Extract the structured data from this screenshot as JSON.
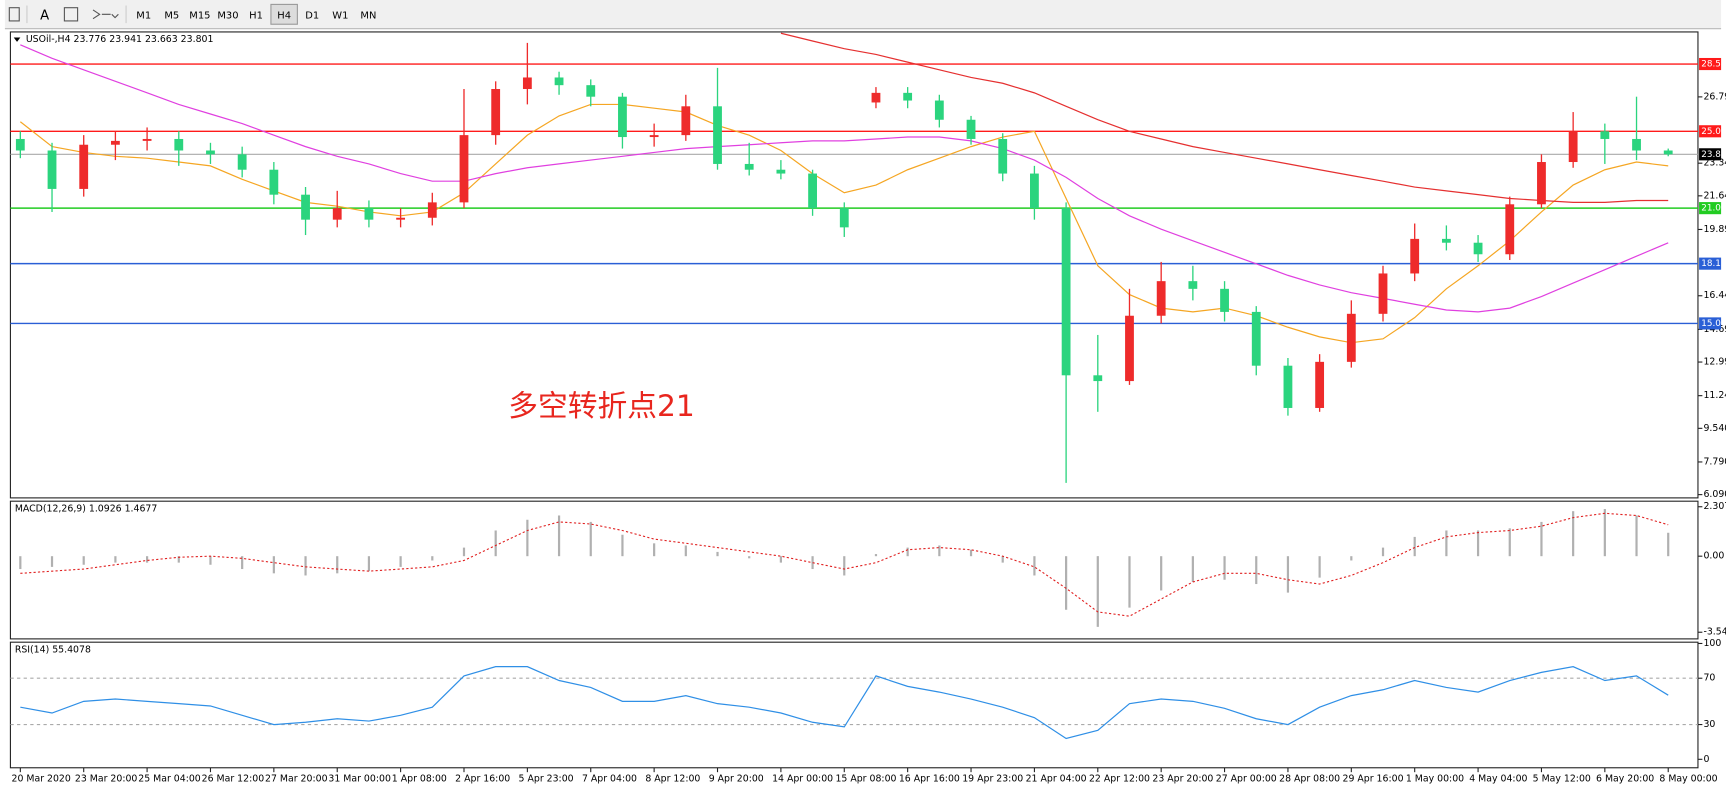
{
  "toolbar": {
    "font_button": "A",
    "timeframes": [
      "M1",
      "M5",
      "M15",
      "M30",
      "H1",
      "H4",
      "D1",
      "W1",
      "MN"
    ],
    "active_index": 5
  },
  "chart_data": [
    {
      "type": "candlestick",
      "title": "USOil-,H4 23.776 23.941 23.663 23.801",
      "annotation": "多空转折点21",
      "up_color": "#ee2b2b",
      "down_color": "#2bd47e",
      "open": [
        24.6,
        24.0,
        22.0,
        24.3,
        24.5,
        24.6,
        24.0,
        23.8,
        23.0,
        21.7,
        20.4,
        21.0,
        20.4,
        20.5,
        21.3,
        24.8,
        27.2,
        27.8,
        27.4,
        26.8,
        24.7,
        24.8,
        26.3,
        23.3,
        23.0,
        22.8,
        21.0,
        26.5,
        27.0,
        26.6,
        25.6,
        24.6,
        22.8,
        21.0,
        12.3,
        12.0,
        15.4,
        17.2,
        16.8,
        15.6,
        12.8,
        10.6,
        13.0,
        15.5,
        17.6,
        19.4,
        19.2,
        18.6,
        21.2,
        23.4,
        25.0,
        24.6,
        24.0
      ],
      "high": [
        25.0,
        24.4,
        24.8,
        25.0,
        25.2,
        25.0,
        24.4,
        24.2,
        23.4,
        22.1,
        21.9,
        21.4,
        21.0,
        21.8,
        27.2,
        27.6,
        29.6,
        28.1,
        27.7,
        27.0,
        25.4,
        26.9,
        28.3,
        24.4,
        23.5,
        23.0,
        21.3,
        27.3,
        27.3,
        26.9,
        25.8,
        24.9,
        23.2,
        21.3,
        14.4,
        16.8,
        18.2,
        18.0,
        17.2,
        15.9,
        13.2,
        13.4,
        16.2,
        18.0,
        20.2,
        20.1,
        19.6,
        21.6,
        23.8,
        26.0,
        25.4,
        26.8,
        24.1
      ],
      "low": [
        23.6,
        20.8,
        21.6,
        23.5,
        24.0,
        23.2,
        23.3,
        22.6,
        21.2,
        19.6,
        20.0,
        20.0,
        20.0,
        20.1,
        21.0,
        24.3,
        26.4,
        26.9,
        26.3,
        24.1,
        24.2,
        24.5,
        23.0,
        22.7,
        22.5,
        20.6,
        19.5,
        26.2,
        26.2,
        25.2,
        24.3,
        22.4,
        20.4,
        6.7,
        10.4,
        11.8,
        15.0,
        16.2,
        15.1,
        12.3,
        10.2,
        10.4,
        12.7,
        15.1,
        17.2,
        18.8,
        18.2,
        18.3,
        21.0,
        23.1,
        23.3,
        23.5,
        23.7
      ],
      "close": [
        24.0,
        22.0,
        24.3,
        24.5,
        24.6,
        24.0,
        23.8,
        23.0,
        21.7,
        20.4,
        21.0,
        20.4,
        20.5,
        21.3,
        24.8,
        27.2,
        27.8,
        27.4,
        26.8,
        24.7,
        24.8,
        26.3,
        23.3,
        23.0,
        22.8,
        21.0,
        20.0,
        27.0,
        26.6,
        25.6,
        24.6,
        22.8,
        21.0,
        12.3,
        12.0,
        15.4,
        17.2,
        16.8,
        15.6,
        12.8,
        10.6,
        13.0,
        15.5,
        17.6,
        19.4,
        19.2,
        18.6,
        21.2,
        23.4,
        25.0,
        24.6,
        24.0,
        23.8
      ],
      "series": [
        {
          "color": "#f5a623",
          "values": [
            25.5,
            24.2,
            23.9,
            23.7,
            23.6,
            23.4,
            23.2,
            22.5,
            21.9,
            21.3,
            21.1,
            20.8,
            20.6,
            20.8,
            21.8,
            23.3,
            24.8,
            25.8,
            26.4,
            26.4,
            26.2,
            26.0,
            25.3,
            24.8,
            24.0,
            22.8,
            21.8,
            22.2,
            23.0,
            23.6,
            24.2,
            24.7,
            25.0,
            21.5,
            18.0,
            16.5,
            15.8,
            15.6,
            15.8,
            15.4,
            14.8,
            14.3,
            14.0,
            14.2,
            15.3,
            16.8,
            18.0,
            19.3,
            20.8,
            22.2,
            23.0,
            23.4,
            23.2
          ]
        },
        {
          "color": "#e040e0",
          "values": [
            29.5,
            28.8,
            28.2,
            27.6,
            27.0,
            26.4,
            25.9,
            25.4,
            24.8,
            24.2,
            23.7,
            23.3,
            22.8,
            22.4,
            22.4,
            22.8,
            23.1,
            23.3,
            23.5,
            23.7,
            23.9,
            24.1,
            24.2,
            24.3,
            24.4,
            24.5,
            24.5,
            24.6,
            24.7,
            24.7,
            24.5,
            24.1,
            23.5,
            22.6,
            21.5,
            20.6,
            19.9,
            19.3,
            18.7,
            18.1,
            17.5,
            17.0,
            16.6,
            16.3,
            16.0,
            15.7,
            15.6,
            15.8,
            16.4,
            17.1,
            17.8,
            18.5,
            19.2
          ]
        },
        {
          "color": "#e53030",
          "values": [
            null,
            null,
            null,
            null,
            null,
            null,
            null,
            null,
            null,
            null,
            null,
            null,
            null,
            null,
            null,
            null,
            null,
            null,
            null,
            null,
            null,
            null,
            null,
            null,
            30.1,
            29.7,
            29.3,
            29.0,
            28.6,
            28.2,
            27.8,
            27.5,
            27.0,
            26.3,
            25.6,
            25.0,
            24.6,
            24.2,
            23.9,
            23.6,
            23.3,
            23.0,
            22.7,
            22.4,
            22.1,
            21.9,
            21.7,
            21.5,
            21.4,
            21.3,
            21.3,
            21.4,
            21.4
          ]
        }
      ],
      "hlines": [
        {
          "value": 28.5,
          "label": "28.500",
          "color": "#ff1a1a"
        },
        {
          "value": 25,
          "label": "25.000",
          "color": "#ff1a1a"
        },
        {
          "value": 21,
          "label": "21.000",
          "color": "#22cc22"
        },
        {
          "value": 18.111,
          "label": "18.111",
          "color": "#2a5fd6"
        },
        {
          "value": 15,
          "label": "15.000",
          "color": "#2a5fd6"
        }
      ],
      "last_price": {
        "value": 23.801,
        "label": "23.801"
      },
      "ylim": [
        5.92,
        30.17
      ],
      "yticks": [
        {
          "value": 6.09,
          "label": "6.090"
        },
        {
          "value": 7.79,
          "label": "7.790"
        },
        {
          "value": 9.54,
          "label": "9.540"
        },
        {
          "value": 11.24,
          "label": "11.240"
        },
        {
          "value": 12.99,
          "label": "12.990"
        },
        {
          "value": 14.69,
          "label": "14.690"
        },
        {
          "value": 16.44,
          "label": "16.440"
        },
        {
          "value": 19.89,
          "label": "19.890"
        },
        {
          "value": 21.64,
          "label": "21.640"
        },
        {
          "value": 23.34,
          "label": "23.340"
        },
        {
          "value": 26.79,
          "label": "26.790"
        }
      ],
      "xticks": [
        {
          "value": 0,
          "label": "20 Mar 2020"
        },
        {
          "value": 2,
          "label": "23 Mar 20:00"
        },
        {
          "value": 4,
          "label": "25 Mar 04:00"
        },
        {
          "value": 6,
          "label": "26 Mar 12:00"
        },
        {
          "value": 8,
          "label": "27 Mar 20:00"
        },
        {
          "value": 10,
          "label": "31 Mar 00:00"
        },
        {
          "value": 12,
          "label": "1 Apr 08:00"
        },
        {
          "value": 14,
          "label": "2 Apr 16:00"
        },
        {
          "value": 16,
          "label": "5 Apr 23:00"
        },
        {
          "value": 18,
          "label": "7 Apr 04:00"
        },
        {
          "value": 20,
          "label": "8 Apr 12:00"
        },
        {
          "value": 22,
          "label": "9 Apr 20:00"
        },
        {
          "value": 24,
          "label": "14 Apr 00:00"
        },
        {
          "value": 26,
          "label": "15 Apr 08:00"
        },
        {
          "value": 28,
          "label": "16 Apr 16:00"
        },
        {
          "value": 30,
          "label": "19 Apr 23:00"
        },
        {
          "value": 32,
          "label": "21 Apr 04:00"
        },
        {
          "value": 34,
          "label": "22 Apr 12:00"
        },
        {
          "value": 36,
          "label": "23 Apr 20:00"
        },
        {
          "value": 38,
          "label": "27 Apr 00:00"
        },
        {
          "value": 40,
          "label": "28 Apr 08:00"
        },
        {
          "value": 42,
          "label": "29 Apr 16:00"
        },
        {
          "value": 44,
          "label": "1 May 00:00"
        },
        {
          "value": 46,
          "label": "4 May 04:00"
        },
        {
          "value": 48,
          "label": "5 May 12:00"
        },
        {
          "value": 50,
          "label": "6 May 20:00"
        },
        {
          "value": 52,
          "label": "8 May 00:00"
        }
      ]
    },
    {
      "type": "macd",
      "title": "MACD(12,26,9) 1.0926 1.4677",
      "histogram_color": "#b0b0b0",
      "signal_color": "#e02020",
      "histogram": [
        -0.6,
        -0.5,
        -0.4,
        -0.3,
        -0.3,
        -0.3,
        -0.4,
        -0.6,
        -0.8,
        -0.9,
        -0.8,
        -0.7,
        -0.5,
        -0.2,
        0.4,
        1.2,
        1.7,
        1.9,
        1.6,
        1.0,
        0.6,
        0.5,
        0.2,
        -0.1,
        -0.3,
        -0.6,
        -0.9,
        0.1,
        0.4,
        0.5,
        0.3,
        -0.3,
        -0.9,
        -2.5,
        -3.3,
        -2.4,
        -1.6,
        -1.2,
        -1.1,
        -1.3,
        -1.7,
        -1.0,
        -0.2,
        0.4,
        0.9,
        1.2,
        1.2,
        1.3,
        1.6,
        2.1,
        2.2,
        1.9,
        1.0926
      ],
      "signal": [
        -0.8,
        -0.7,
        -0.6,
        -0.4,
        -0.2,
        -0.05,
        0.0,
        -0.1,
        -0.3,
        -0.5,
        -0.6,
        -0.7,
        -0.6,
        -0.5,
        -0.2,
        0.5,
        1.2,
        1.6,
        1.5,
        1.2,
        0.8,
        0.6,
        0.4,
        0.2,
        0.0,
        -0.3,
        -0.6,
        -0.3,
        0.3,
        0.4,
        0.3,
        0.0,
        -0.5,
        -1.5,
        -2.6,
        -2.8,
        -2.0,
        -1.2,
        -0.8,
        -0.8,
        -1.1,
        -1.3,
        -0.9,
        -0.3,
        0.4,
        0.9,
        1.1,
        1.2,
        1.4,
        1.8,
        2.0,
        1.9,
        1.4677
      ],
      "ylim": [
        -3.859,
        2.566
      ],
      "yticks": [
        2.3072,
        {
          "value": 0,
          "label": "0.00"
        },
        -3.5484
      ]
    },
    {
      "type": "line",
      "title": "RSI(14) 55.4078",
      "color": "#2f8fe6",
      "values": [
        45,
        40,
        50,
        52,
        50,
        48,
        46,
        38,
        30,
        32,
        35,
        33,
        38,
        45,
        72,
        80,
        80,
        68,
        62,
        50,
        50,
        55,
        48,
        45,
        40,
        32,
        28,
        72,
        63,
        58,
        52,
        45,
        36,
        18,
        25,
        48,
        52,
        50,
        44,
        35,
        30,
        45,
        55,
        60,
        68,
        62,
        58,
        68,
        75,
        80,
        68,
        72,
        55.4078
      ],
      "levels": [
        70,
        30
      ],
      "ylim": [
        -7.3,
        101.1
      ],
      "yticks": [
        100,
        70,
        30,
        0
      ]
    }
  ]
}
